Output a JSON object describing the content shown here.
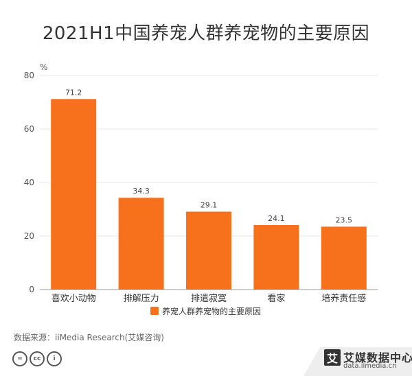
{
  "title": "2021H1中国养宠人群养宠物的主要原因",
  "source": "数据来源：iiMedia Research(艾媒咨询)",
  "brand": {
    "name": "艾媒数据中心",
    "url": "data.iimedia.cn",
    "logo": "艾"
  },
  "license_icons": [
    "equals-icon",
    "cc-icon",
    "person-icon"
  ],
  "colors": {
    "bar": "#f7711c",
    "grid": "#e6e6e6",
    "axis": "#999999"
  },
  "chart_data": {
    "type": "bar",
    "unit": "%",
    "categories": [
      "喜欢小动物",
      "排解压力",
      "排遣寂寞",
      "看家",
      "培养责任感"
    ],
    "series": [
      {
        "name": "养宠人群养宠物的主要原因",
        "values": [
          71.2,
          34.3,
          29.1,
          24.1,
          23.5
        ]
      }
    ],
    "ylim": [
      0,
      80
    ],
    "yticks": [
      0,
      20,
      40,
      60,
      80
    ],
    "grid": true,
    "legend": "bottom-center"
  }
}
